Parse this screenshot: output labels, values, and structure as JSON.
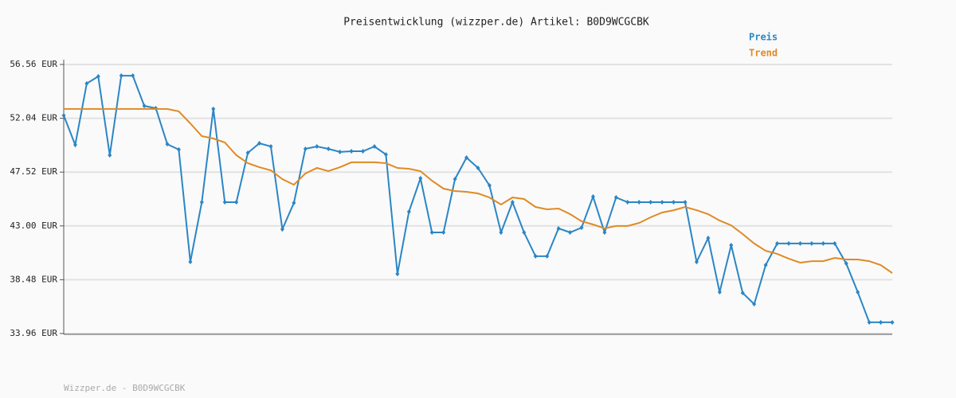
{
  "chart_data": {
    "type": "line",
    "title": "Preisentwicklung (wizzper.de) Artikel: B0D9WCGCBK",
    "footer": "Wizzper.de - B0D9WCGCBK",
    "categories": [
      null,
      null,
      null,
      null,
      null,
      null,
      null,
      null,
      null,
      null,
      null,
      null,
      null,
      null,
      null,
      null,
      null,
      null,
      null,
      null,
      null,
      null,
      null,
      null,
      null,
      null,
      null,
      null,
      null,
      null,
      null,
      null,
      null,
      null,
      null,
      null,
      null,
      null,
      null,
      null,
      null,
      null,
      null,
      null,
      null,
      null,
      null,
      null,
      null,
      null,
      null,
      null,
      null,
      null,
      null,
      null,
      null,
      null,
      null,
      null,
      null,
      null,
      null,
      null,
      null,
      null,
      null,
      null,
      null,
      null,
      null,
      null,
      null
    ],
    "series": [
      {
        "name": "Preis",
        "color": "#2a86c6",
        "markers": true,
        "values": [
          52.28,
          49.81,
          54.96,
          55.56,
          48.94,
          55.62,
          55.62,
          53.08,
          52.88,
          49.87,
          49.41,
          39.98,
          44.99,
          52.82,
          44.99,
          44.99,
          49.14,
          49.94,
          49.67,
          42.72,
          44.93,
          49.47,
          49.67,
          49.47,
          49.21,
          49.27,
          49.27,
          49.67,
          49.0,
          38.97,
          44.19,
          47.0,
          42.45,
          42.45,
          46.93,
          48.74,
          47.87,
          46.4,
          42.45,
          44.99,
          42.45,
          40.45,
          40.45,
          42.79,
          42.45,
          42.85,
          45.46,
          42.45,
          45.39,
          44.99,
          44.99,
          44.99,
          44.99,
          44.99,
          44.99,
          39.98,
          41.98,
          37.44,
          41.38,
          37.37,
          36.43,
          39.71,
          41.52,
          41.52,
          41.52,
          41.52,
          41.52,
          41.52,
          39.84,
          37.44,
          34.9,
          34.9,
          34.9
        ]
      },
      {
        "name": "Trend",
        "color": "#e08a24",
        "markers": false,
        "values": [
          52.82,
          52.82,
          52.82,
          52.82,
          52.82,
          52.82,
          52.82,
          52.82,
          52.82,
          52.82,
          52.62,
          51.61,
          50.54,
          50.34,
          50.01,
          48.94,
          48.27,
          47.93,
          47.67,
          46.93,
          46.46,
          47.4,
          47.87,
          47.6,
          47.93,
          48.34,
          48.34,
          48.34,
          48.27,
          47.87,
          47.8,
          47.6,
          46.8,
          46.13,
          45.93,
          45.86,
          45.73,
          45.39,
          44.79,
          45.39,
          45.26,
          44.59,
          44.39,
          44.46,
          43.99,
          43.39,
          43.12,
          42.79,
          42.99,
          42.99,
          43.25,
          43.72,
          44.12,
          44.32,
          44.59,
          44.32,
          43.99,
          43.45,
          43.05,
          42.32,
          41.52,
          40.91,
          40.65,
          40.25,
          39.91,
          40.04,
          40.04,
          40.31,
          40.18,
          40.18,
          40.04,
          39.71,
          39.04
        ]
      }
    ],
    "ylim": [
      33.96,
      56.56
    ],
    "yticks": [
      {
        "value": 33.96,
        "label": "33.96 EUR"
      },
      {
        "value": 38.48,
        "label": "38.48 EUR"
      },
      {
        "value": 43.0,
        "label": "43.00 EUR"
      },
      {
        "value": 47.52,
        "label": "47.52 EUR"
      },
      {
        "value": 52.04,
        "label": "52.04 EUR"
      },
      {
        "value": 56.56,
        "label": "56.56 EUR"
      }
    ],
    "grid": true
  }
}
